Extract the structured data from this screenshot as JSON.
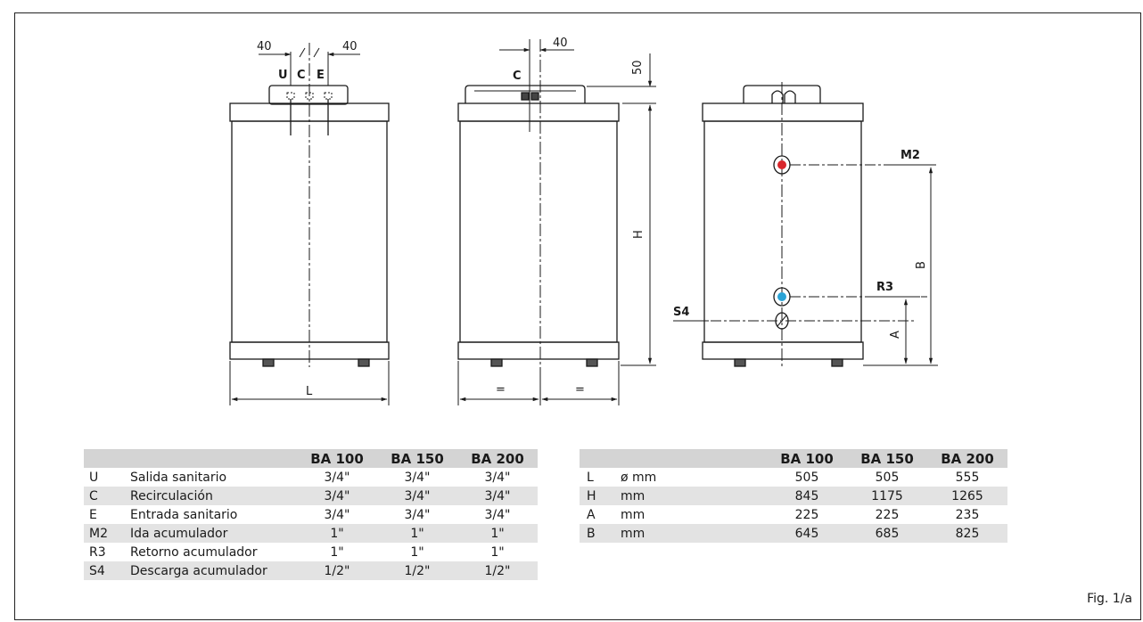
{
  "diagram": {
    "front_view": {
      "dim_left": "40",
      "dim_right": "40",
      "labels": [
        "U",
        "C",
        "E"
      ],
      "width_label": "L"
    },
    "side_view": {
      "dim_top": "40",
      "label": "C",
      "dim_cap": "50",
      "height_label": "H",
      "equal_left": "=",
      "equal_right": "="
    },
    "rear_view": {
      "labels": {
        "m2": "M2",
        "r3": "R3",
        "s4": "S4"
      },
      "dim_a": "A",
      "dim_b": "B"
    }
  },
  "connections_table": {
    "headers": [
      "",
      "",
      "BA 100",
      "BA 150",
      "BA 200"
    ],
    "rows": [
      [
        "U",
        "Salida sanitario",
        "3/4\"",
        "3/4\"",
        "3/4\""
      ],
      [
        "C",
        "Recirculación",
        "3/4\"",
        "3/4\"",
        "3/4\""
      ],
      [
        "E",
        "Entrada sanitario",
        "3/4\"",
        "3/4\"",
        "3/4\""
      ],
      [
        "M2",
        "Ida acumulador",
        "1\"",
        "1\"",
        "1\""
      ],
      [
        "R3",
        "Retorno acumulador",
        "1\"",
        "1\"",
        "1\""
      ],
      [
        "S4",
        "Descarga acumulador",
        "1/2\"",
        "1/2\"",
        "1/2\""
      ]
    ]
  },
  "dimensions_table": {
    "headers": [
      "",
      "",
      "BA 100",
      "BA 150",
      "BA 200"
    ],
    "rows": [
      [
        "L",
        "ø mm",
        "505",
        "505",
        "555"
      ],
      [
        "H",
        "mm",
        "845",
        "1175",
        "1265"
      ],
      [
        "A",
        "mm",
        "225",
        "225",
        "235"
      ],
      [
        "B",
        "mm",
        "645",
        "685",
        "825"
      ]
    ]
  },
  "figure_label": "Fig. 1/a"
}
